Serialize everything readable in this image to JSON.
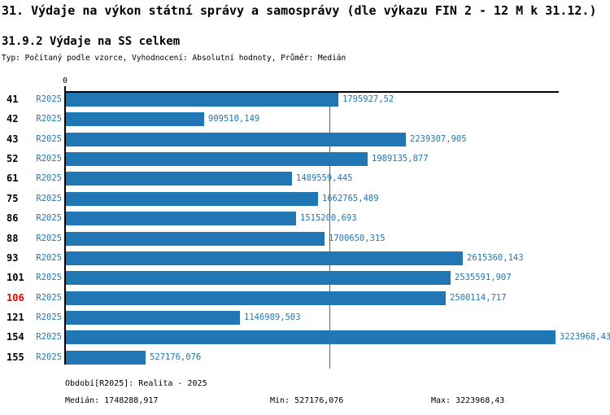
{
  "header": {
    "title": "31. Výdaje na výkon státní správy a samosprávy (dle výkazu FIN 2 - 12 M k 31.12.)",
    "subtitle": "31.9.2 Výdaje na SS celkem",
    "meta": "Typ: Počítaný podle vzorce, Vyhodnocení: Absolutní hodnoty, Průměr: Medián"
  },
  "chart_data": {
    "type": "bar",
    "orientation": "horizontal",
    "title": "31.9.2 Výdaje na SS celkem",
    "x_axis_zero_label": "0",
    "xlim": [
      0,
      3223968.43
    ],
    "grid": false,
    "legend_position": "none",
    "categories": [
      "41",
      "42",
      "43",
      "52",
      "61",
      "75",
      "86",
      "88",
      "93",
      "101",
      "106",
      "121",
      "154",
      "155"
    ],
    "series": [
      {
        "name": "R2025",
        "values": [
          1795927.52,
          909510.149,
          2239307.905,
          1989135.877,
          1489559.445,
          1662765.489,
          1515200.693,
          1700650.315,
          2615360.143,
          2535591.907,
          2500114.717,
          1146989.503,
          3223968.43,
          527176.076
        ]
      }
    ],
    "value_labels": [
      "1795927,52",
      "909510,149",
      "2239307,905",
      "1989135,877",
      "1489559,445",
      "1662765,489",
      "1515200,693",
      "1700650,315",
      "2615360,143",
      "2535591,907",
      "2500114,717",
      "1146989,503",
      "3223968,43",
      "527176,076"
    ],
    "highlighted_category": "106",
    "median": 1748288.917,
    "min": 527176.076,
    "max": 3223968.43,
    "colors": {
      "bar": "#2077b4",
      "median_line": "#2077b4",
      "value_label": "#2077b4",
      "series_label": "#2077b4",
      "category_label": "#000000",
      "highlight_category": "#e80000"
    }
  },
  "footer": {
    "period": "Období[R2025]: Realita - 2025",
    "median": "Medián: 1748288,917",
    "min": "Min: 527176,076",
    "max": "Max: 3223968,43"
  }
}
